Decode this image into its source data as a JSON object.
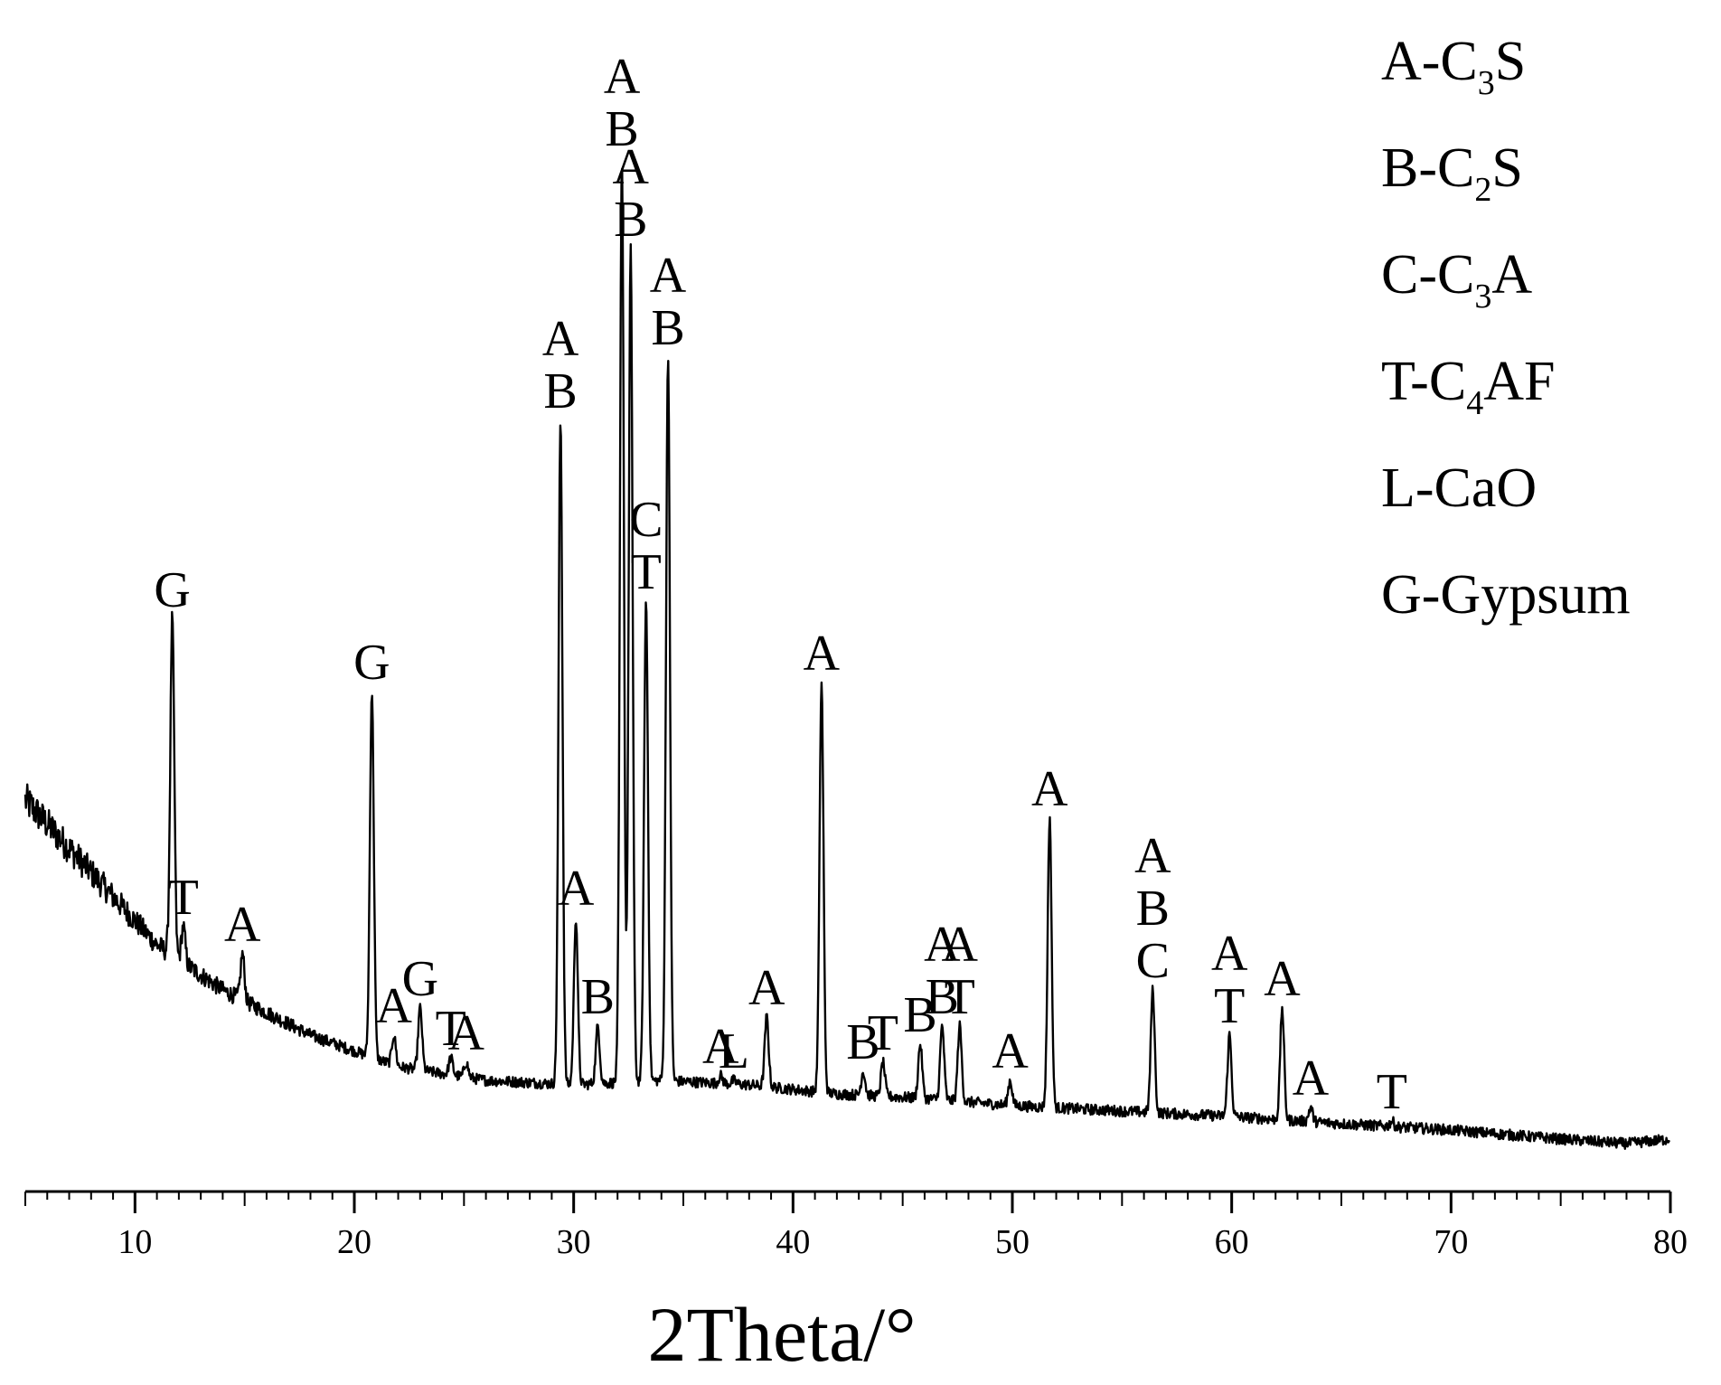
{
  "chart_data": {
    "type": "line",
    "title": "",
    "xlabel": "2Theta/°",
    "ylabel": "",
    "xlim": [
      5,
      80
    ],
    "x_ticks": [
      "10",
      "20",
      "30",
      "40",
      "50",
      "60",
      "70",
      "80"
    ],
    "y_axis_visible": false,
    "grid": false,
    "legend_position": "top-right",
    "line_color": "#000000",
    "legend": [
      {
        "code": "A",
        "prefix": "A-C",
        "sub": "3",
        "suffix": "S"
      },
      {
        "code": "B",
        "prefix": "B-C",
        "sub": "2",
        "suffix": "S"
      },
      {
        "code": "C",
        "prefix": "C-C",
        "sub": "3",
        "suffix": "A"
      },
      {
        "code": "T",
        "prefix": "T-C",
        "sub": "4",
        "suffix": "AF"
      },
      {
        "code": "L",
        "prefix": "L-CaO",
        "sub": "",
        "suffix": ""
      },
      {
        "code": "G",
        "prefix": "G-Gypsum",
        "sub": "",
        "suffix": ""
      }
    ],
    "baseline": [
      [
        5,
        0.38
      ],
      [
        8,
        0.3
      ],
      [
        11,
        0.22
      ],
      [
        14,
        0.17
      ],
      [
        18,
        0.12
      ],
      [
        22,
        0.085
      ],
      [
        26,
        0.07
      ],
      [
        30,
        0.065
      ],
      [
        34,
        0.07
      ],
      [
        38,
        0.065
      ],
      [
        42,
        0.055
      ],
      [
        46,
        0.05
      ],
      [
        50,
        0.042
      ],
      [
        55,
        0.036
      ],
      [
        60,
        0.03
      ],
      [
        65,
        0.022
      ],
      [
        70,
        0.015
      ],
      [
        75,
        0.005
      ],
      [
        78,
        0.0
      ],
      [
        80,
        0.005
      ]
    ],
    "peaks": [
      {
        "x": 11.7,
        "y": 0.58,
        "labels": [
          "G"
        ]
      },
      {
        "x": 12.2,
        "y": 0.24,
        "labels": [
          "T"
        ]
      },
      {
        "x": 14.9,
        "y": 0.21,
        "labels": [
          "A"
        ]
      },
      {
        "x": 20.8,
        "y": 0.5,
        "labels": [
          "G"
        ]
      },
      {
        "x": 21.8,
        "y": 0.12,
        "labels": [
          "A"
        ]
      },
      {
        "x": 23.0,
        "y": 0.15,
        "labels": [
          "G"
        ]
      },
      {
        "x": 24.4,
        "y": 0.095,
        "labels": [
          "T"
        ]
      },
      {
        "x": 25.1,
        "y": 0.09,
        "labels": [
          "A"
        ]
      },
      {
        "x": 29.4,
        "y": 0.8,
        "labels": [
          "A",
          "B"
        ]
      },
      {
        "x": 30.1,
        "y": 0.25,
        "labels": [
          "A"
        ]
      },
      {
        "x": 31.1,
        "y": 0.13,
        "labels": [
          "B"
        ]
      },
      {
        "x": 32.2,
        "y": 1.09,
        "labels": [
          "A",
          "B"
        ]
      },
      {
        "x": 32.6,
        "y": 0.99,
        "labels": [
          "A",
          "B"
        ]
      },
      {
        "x": 33.3,
        "y": 0.6,
        "labels": [
          "C",
          "T"
        ]
      },
      {
        "x": 34.3,
        "y": 0.87,
        "labels": [
          "A",
          "B"
        ]
      },
      {
        "x": 36.7,
        "y": 0.075,
        "labels": [
          "A"
        ]
      },
      {
        "x": 37.3,
        "y": 0.07,
        "labels": [
          "L"
        ]
      },
      {
        "x": 38.8,
        "y": 0.14,
        "labels": [
          "A"
        ]
      },
      {
        "x": 41.3,
        "y": 0.51,
        "labels": [
          "A"
        ]
      },
      {
        "x": 43.2,
        "y": 0.08,
        "labels": [
          "B"
        ]
      },
      {
        "x": 44.1,
        "y": 0.09,
        "labels": [
          "T"
        ]
      },
      {
        "x": 45.8,
        "y": 0.11,
        "labels": [
          "B"
        ]
      },
      {
        "x": 46.8,
        "y": 0.13,
        "labels": [
          "A",
          "B"
        ]
      },
      {
        "x": 47.6,
        "y": 0.13,
        "labels": [
          "A",
          "T"
        ]
      },
      {
        "x": 49.9,
        "y": 0.07,
        "labels": [
          "A"
        ]
      },
      {
        "x": 51.7,
        "y": 0.36,
        "labels": [
          "A"
        ]
      },
      {
        "x": 56.4,
        "y": 0.17,
        "labels": [
          "A",
          "B",
          "C"
        ]
      },
      {
        "x": 59.9,
        "y": 0.12,
        "labels": [
          "A",
          "T"
        ]
      },
      {
        "x": 62.3,
        "y": 0.15,
        "labels": [
          "A"
        ]
      },
      {
        "x": 63.6,
        "y": 0.04,
        "labels": [
          "A"
        ]
      },
      {
        "x": 67.3,
        "y": 0.025,
        "labels": [
          "T"
        ]
      }
    ]
  }
}
